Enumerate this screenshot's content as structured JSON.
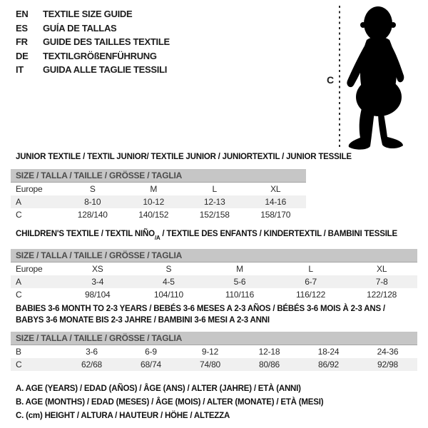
{
  "languages": {
    "items": [
      {
        "code": "EN",
        "text": "TEXTILE SIZE GUIDE"
      },
      {
        "code": "ES",
        "text": "GUÍA DE TALLAS"
      },
      {
        "code": "FR",
        "text": "GUIDE DES TAILLES TEXTILE"
      },
      {
        "code": "DE",
        "text": "TEXTILGRÖßENFÜHRUNG"
      },
      {
        "code": "IT",
        "text": "GUIDA ALLE TAGLIE TESSILI"
      }
    ]
  },
  "figure": {
    "label": "C",
    "graphic": "toddler-silhouette"
  },
  "tables": [
    {
      "id": "junior",
      "title_lines": [
        [
          {
            "t": "JUNIOR TEXTILE / TEXTIL JUNIOR/ TEXTILE JUNIOR / JUNIORTEXTIL / JUNIOR TESSILE"
          }
        ]
      ],
      "size_header": "SIZE / TALLA / TAILLE / GRÖSSE / TAGLIA",
      "rows": [
        {
          "label": "Europe",
          "values": [
            "S",
            "M",
            "L",
            "XL"
          ],
          "shaded": false
        },
        {
          "label": "A",
          "values": [
            "8-10",
            "10-12",
            "12-13",
            "14-16"
          ],
          "shaded": true
        },
        {
          "label": "C",
          "values": [
            "128/140",
            "140/152",
            "152/158",
            "158/170"
          ],
          "shaded": false
        }
      ]
    },
    {
      "id": "children",
      "title_lines": [
        [
          {
            "t": "CHILDREN'S TEXTILE / TEXTIL NIÑO"
          },
          {
            "t": "/A",
            "sub": true
          },
          {
            "t": " / TEXTILE DES ENFANTS / KINDERTEXTIL / BAMBINI TESSILE"
          }
        ]
      ],
      "size_header": "SIZE / TALLA / TAILLE / GRÖSSE / TAGLIA",
      "rows": [
        {
          "label": "Europe",
          "values": [
            "XS",
            "S",
            "M",
            "L",
            "XL"
          ],
          "shaded": false
        },
        {
          "label": "A",
          "values": [
            "3-4",
            "4-5",
            "5-6",
            "6-7",
            "7-8"
          ],
          "shaded": true
        },
        {
          "label": "C",
          "values": [
            "98/104",
            "104/110",
            "110/116",
            "116/122",
            "122/128"
          ],
          "shaded": false
        }
      ]
    },
    {
      "id": "babies",
      "title_lines": [
        [
          {
            "t": "BABIES 3-6 MONTH TO 2-3 YEARS / BEBÉS 3-6 MESES A 2-3 AÑOS / BÉBÉS 3-6 MOIS À 2-3 ANS /"
          }
        ],
        [
          {
            "t": "BABYS 3-6 MONATE BIS 2-3 JAHRE / BAMBINI 3-6 MESI A 2-3 ANNI"
          }
        ]
      ],
      "size_header": "SIZE / TALLA / TAILLE / GRÖSSE / TAGLIA",
      "rows": [
        {
          "label": "B",
          "values": [
            "3-6",
            "6-9",
            "9-12",
            "12-18",
            "18-24",
            "24-36"
          ],
          "shaded": false
        },
        {
          "label": "C",
          "values": [
            "62/68",
            "68/74",
            "74/80",
            "80/86",
            "86/92",
            "92/98"
          ],
          "shaded": true
        }
      ]
    }
  ],
  "legend": {
    "lines": [
      "A. AGE (YEARS) / EDAD (AÑOS) / ÂGE (ANS) / ALTER (JAHRE) / ETÀ (ANNI)",
      "B. AGE (MONTHS) / EDAD (MESES) / ÂGE (MOIS) / ALTER (MONATE) / ETÀ (MESI)",
      "C. (cm) HEIGHT / ALTURA / HAUTEUR / HÖHE / ALTEZZA"
    ]
  },
  "colors": {
    "header_bar_bg": "#c6c6c6",
    "header_bar_text": "#4c4c4c",
    "shaded_row_bg": "#f0f0f0",
    "silhouette": "#000000",
    "text": "#1d1d1d"
  }
}
